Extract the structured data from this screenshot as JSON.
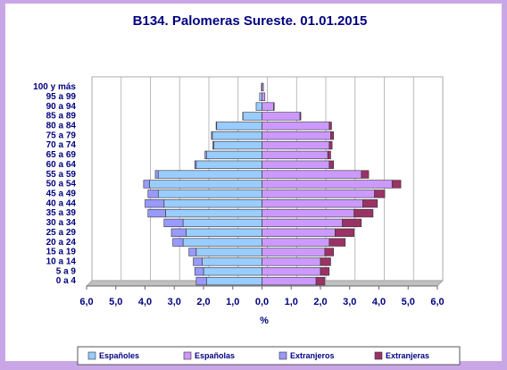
{
  "chart_data": {
    "type": "pyramid",
    "title": "B134. Palomeras Sureste. 01.01.2015",
    "xlabel": "%",
    "categories": [
      "0 a 4",
      "5 a 9",
      "10 a 14",
      "15 a 19",
      "20 a 24",
      "25 a 29",
      "30 a 34",
      "35 a 39",
      "40 a 44",
      "45 a 49",
      "50 a 54",
      "55 a 59",
      "60 a 64",
      "65 a 69",
      "70 a 74",
      "75 a 79",
      "80 a 84",
      "85 a 89",
      "90 a 94",
      "95 a 99",
      "100 y más"
    ],
    "series": [
      {
        "name": "Españoles",
        "color": "#99ccff",
        "values": [
          -1.9,
          -2.0,
          -2.05,
          -2.25,
          -2.7,
          -2.6,
          -2.7,
          -3.3,
          -3.35,
          -3.55,
          -3.85,
          -3.55,
          -2.25,
          -1.9,
          -1.65,
          -1.7,
          -1.55,
          -0.65,
          -0.2,
          -0.08,
          -0.02
        ]
      },
      {
        "name": "Españolas",
        "color": "#cc99ff",
        "values": [
          1.85,
          2.0,
          2.0,
          2.15,
          2.3,
          2.5,
          2.75,
          3.15,
          3.45,
          3.85,
          4.45,
          3.4,
          2.3,
          2.25,
          2.3,
          2.35,
          2.3,
          1.3,
          0.4,
          0.1,
          0.05
        ]
      },
      {
        "name": "Extranjeros",
        "color": "#9999ff",
        "values": [
          -0.35,
          -0.3,
          -0.3,
          -0.25,
          -0.35,
          -0.5,
          -0.65,
          -0.6,
          -0.65,
          -0.35,
          -0.2,
          -0.1,
          -0.05,
          -0.05,
          -0.03,
          -0.03,
          -0.02,
          -0.01,
          0,
          0,
          0
        ]
      },
      {
        "name": "Extranjeras",
        "color": "#993366",
        "values": [
          0.3,
          0.3,
          0.35,
          0.3,
          0.55,
          0.65,
          0.65,
          0.65,
          0.5,
          0.35,
          0.3,
          0.25,
          0.15,
          0.1,
          0.1,
          0.1,
          0.08,
          0.03,
          0.02,
          0,
          0
        ]
      }
    ],
    "xlim": [
      -6,
      6
    ],
    "xticks": [
      {
        "value": -6,
        "label": "6,0"
      },
      {
        "value": -5,
        "label": "5,0"
      },
      {
        "value": -4,
        "label": "4,0"
      },
      {
        "value": -3,
        "label": "3,0"
      },
      {
        "value": -2,
        "label": "2,0"
      },
      {
        "value": -1,
        "label": "1,0"
      },
      {
        "value": 0,
        "label": "0,0"
      },
      {
        "value": 1,
        "label": "1,0"
      },
      {
        "value": 2,
        "label": "2,0"
      },
      {
        "value": 3,
        "label": "3,0"
      },
      {
        "value": 4,
        "label": "4,0"
      },
      {
        "value": 5,
        "label": "5,0"
      },
      {
        "value": 6,
        "label": "6,0"
      }
    ],
    "grid": true
  }
}
